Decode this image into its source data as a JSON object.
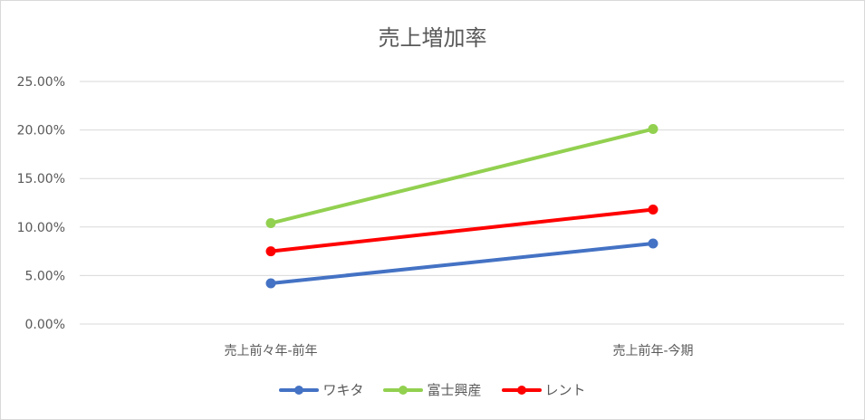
{
  "chart_data": {
    "type": "line",
    "title": "売上増加率",
    "categories": [
      "売上前々年-前年",
      "売上前年-今期"
    ],
    "ylim": [
      0,
      0.25
    ],
    "yticks": [
      0,
      0.05,
      0.1,
      0.15,
      0.2,
      0.25
    ],
    "ytick_labels": [
      "0.00%",
      "5.00%",
      "10.00%",
      "15.00%",
      "20.00%",
      "25.00%"
    ],
    "grid": true,
    "legend_position": "bottom",
    "series": [
      {
        "name": "ワキタ",
        "color": "#4472c4",
        "values": [
          0.042,
          0.083
        ]
      },
      {
        "name": "富士興産",
        "color": "#92d050",
        "values": [
          0.104,
          0.201
        ]
      },
      {
        "name": "レント",
        "color": "#ff0000",
        "values": [
          0.075,
          0.118
        ]
      }
    ]
  }
}
